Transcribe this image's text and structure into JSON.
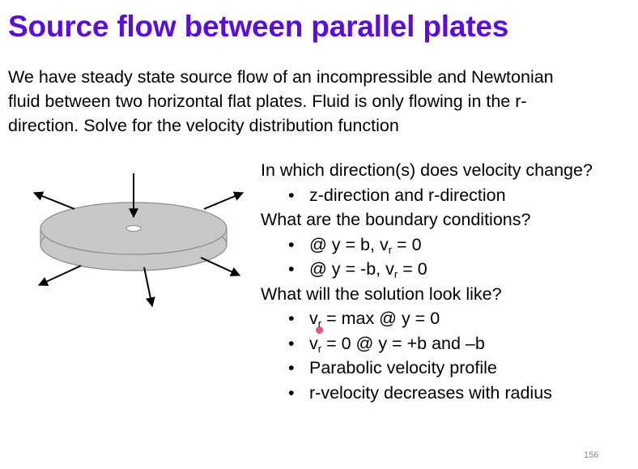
{
  "title": "Source flow between parallel plates",
  "intro": {
    "line1": "We have steady state source flow of an incompressible and Newtonian",
    "line2": "fluid between two horizontal flat plates.  Fluid is only flowing in the r-",
    "line3": "direction. Solve for the velocity distribution function"
  },
  "questions": [
    {
      "text": "In which direction(s) does velocity change?",
      "bullets": [
        {
          "text": "z-direction and r-direction"
        }
      ]
    },
    {
      "text": "What are the boundary conditions?",
      "bullets": [
        {
          "pre": "@ y = b, v",
          "sub": "r",
          "post": " = 0"
        },
        {
          "pre": "@ y = -b, v",
          "sub": "r",
          "post": " = 0"
        }
      ]
    },
    {
      "text": "What will the solution look like?",
      "bullets": [
        {
          "pre": "v",
          "sub": "r",
          "post": " = max @ y = 0"
        },
        {
          "pre": "v",
          "sub": "r",
          "post": " = 0 @ y = +b and –b"
        },
        {
          "text": "Parabolic velocity profile"
        },
        {
          "text": "r-velocity decreases with radius"
        }
      ]
    }
  ],
  "bullet_glyph": "•",
  "page_number": "156",
  "colors": {
    "title": "#5b0fd6",
    "plate_fill": "#c8c8c8",
    "plate_stroke": "#8c8c8c",
    "pointer": "#e2336b"
  }
}
